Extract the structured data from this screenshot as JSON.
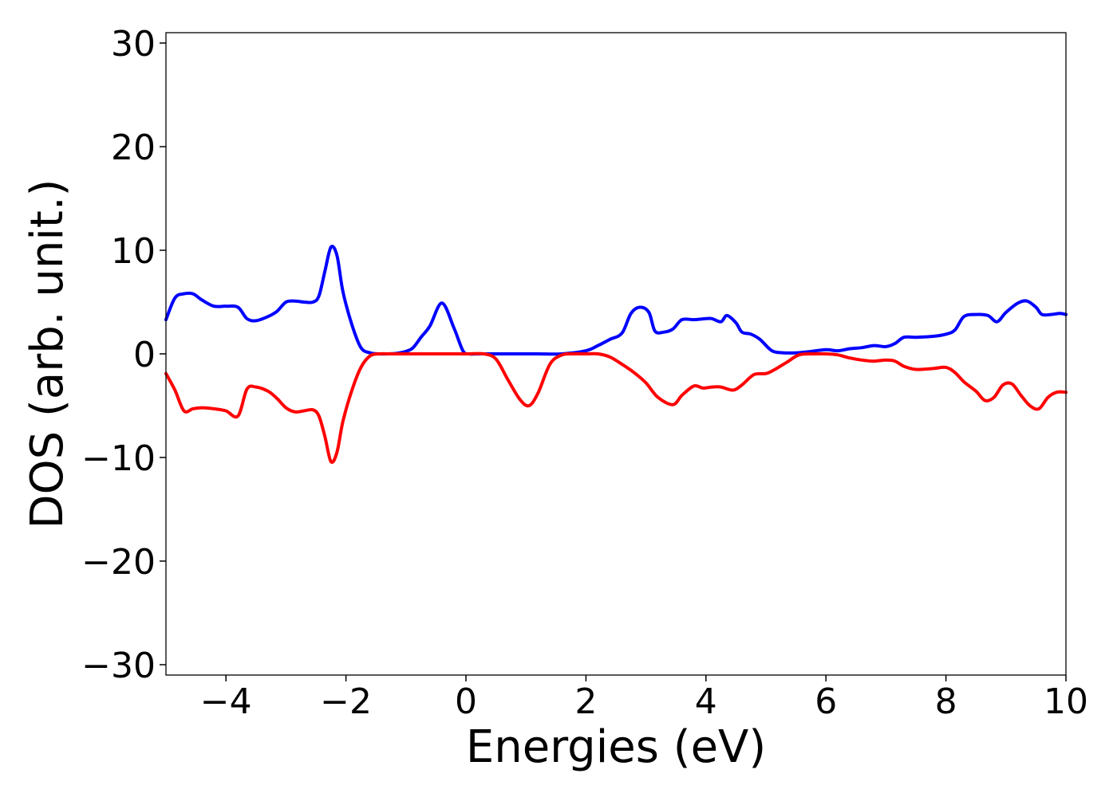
{
  "chart_data": {
    "type": "line",
    "title": "",
    "xlabel": "Energies (eV)",
    "ylabel": "DOS (arb. unit.)",
    "xlim": [
      -5,
      10
    ],
    "ylim": [
      -31,
      31
    ],
    "grid": false,
    "legend": "none",
    "xticks": [
      {
        "value": -4,
        "label": "−4"
      },
      {
        "value": -2,
        "label": "−2"
      },
      {
        "value": 0,
        "label": "0"
      },
      {
        "value": 2,
        "label": "2"
      },
      {
        "value": 4,
        "label": "4"
      },
      {
        "value": 6,
        "label": "6"
      },
      {
        "value": 8,
        "label": "8"
      },
      {
        "value": 10,
        "label": "10"
      }
    ],
    "yticks": [
      {
        "value": -30,
        "label": "−30"
      },
      {
        "value": -20,
        "label": "−20"
      },
      {
        "value": -10,
        "label": "−10"
      },
      {
        "value": 0,
        "label": "0"
      },
      {
        "value": 10,
        "label": "10"
      },
      {
        "value": 20,
        "label": "20"
      },
      {
        "value": 30,
        "label": "30"
      }
    ],
    "series": [
      {
        "color": "#0000ff",
        "x": [
          -5.0,
          -4.85,
          -4.7,
          -4.55,
          -4.4,
          -4.2,
          -4.0,
          -3.8,
          -3.65,
          -3.5,
          -3.3,
          -3.15,
          -3.0,
          -2.85,
          -2.7,
          -2.55,
          -2.45,
          -2.35,
          -2.25,
          -2.15,
          -2.05,
          -1.9,
          -1.75,
          -1.6,
          -1.45,
          -1.3,
          -1.1,
          -0.9,
          -0.75,
          -0.6,
          -0.4,
          -0.2,
          -0.05,
          0.05,
          0.2,
          0.35,
          0.5,
          0.8,
          1.2,
          1.6,
          2.0,
          2.2,
          2.4,
          2.6,
          2.75,
          2.9,
          3.05,
          3.15,
          3.3,
          3.45,
          3.6,
          3.8,
          4.0,
          4.1,
          4.25,
          4.35,
          4.5,
          4.6,
          4.75,
          4.9,
          5.1,
          5.3,
          5.5,
          5.7,
          6.0,
          6.2,
          6.4,
          6.6,
          6.8,
          7.0,
          7.15,
          7.3,
          7.5,
          7.8,
          8.0,
          8.15,
          8.3,
          8.5,
          8.7,
          8.85,
          9.0,
          9.2,
          9.35,
          9.5,
          9.6,
          9.75,
          9.9,
          10.0
        ],
        "y": [
          3.3,
          5.4,
          5.8,
          5.8,
          5.2,
          4.6,
          4.6,
          4.5,
          3.4,
          3.2,
          3.6,
          4.1,
          5.0,
          5.1,
          5.0,
          5.0,
          5.6,
          8.0,
          10.3,
          9.5,
          6.0,
          2.8,
          0.6,
          0.1,
          0.0,
          0.0,
          0.1,
          0.5,
          1.6,
          2.7,
          4.9,
          2.5,
          0.3,
          0.0,
          0.0,
          0.0,
          0.0,
          0.0,
          0.0,
          0.0,
          0.3,
          0.8,
          1.4,
          2.0,
          3.9,
          4.5,
          4.0,
          2.2,
          2.1,
          2.4,
          3.3,
          3.3,
          3.4,
          3.4,
          3.1,
          3.7,
          3.0,
          2.1,
          1.9,
          1.4,
          0.3,
          0.1,
          0.1,
          0.2,
          0.4,
          0.3,
          0.5,
          0.6,
          0.8,
          0.7,
          1.0,
          1.6,
          1.6,
          1.7,
          1.9,
          2.3,
          3.6,
          3.8,
          3.7,
          3.1,
          4.0,
          4.9,
          5.1,
          4.5,
          3.8,
          3.8,
          3.9,
          3.8
        ]
      },
      {
        "color": "#ff0000",
        "x": [
          -5.0,
          -4.85,
          -4.7,
          -4.55,
          -4.4,
          -4.2,
          -4.0,
          -3.8,
          -3.65,
          -3.5,
          -3.3,
          -3.15,
          -3.0,
          -2.85,
          -2.7,
          -2.55,
          -2.45,
          -2.35,
          -2.25,
          -2.15,
          -2.05,
          -1.9,
          -1.75,
          -1.6,
          -1.45,
          -1.3,
          -1.1,
          -0.9,
          -0.5,
          0.0,
          0.3,
          0.5,
          0.7,
          0.9,
          1.05,
          1.2,
          1.4,
          1.6,
          1.8,
          2.0,
          2.2,
          2.4,
          2.6,
          2.8,
          3.0,
          3.2,
          3.45,
          3.6,
          3.8,
          3.95,
          4.1,
          4.25,
          4.45,
          4.6,
          4.8,
          5.0,
          5.15,
          5.35,
          5.55,
          5.8,
          6.0,
          6.2,
          6.4,
          6.6,
          6.8,
          7.0,
          7.15,
          7.3,
          7.5,
          7.8,
          8.0,
          8.15,
          8.3,
          8.5,
          8.65,
          8.8,
          8.95,
          9.1,
          9.25,
          9.4,
          9.55,
          9.7,
          9.85,
          10.0
        ],
        "y": [
          -1.9,
          -3.5,
          -5.5,
          -5.3,
          -5.2,
          -5.3,
          -5.5,
          -6.0,
          -3.4,
          -3.2,
          -3.6,
          -4.3,
          -5.2,
          -5.6,
          -5.5,
          -5.4,
          -6.0,
          -8.0,
          -10.4,
          -9.5,
          -6.5,
          -3.5,
          -1.3,
          -0.2,
          0.0,
          0.0,
          0.0,
          0.0,
          0.0,
          0.0,
          0.0,
          -0.5,
          -2.5,
          -4.4,
          -5.0,
          -3.8,
          -1.0,
          -0.1,
          0.0,
          0.0,
          0.0,
          -0.3,
          -1.0,
          -1.8,
          -2.8,
          -4.2,
          -4.9,
          -4.0,
          -3.1,
          -3.3,
          -3.2,
          -3.2,
          -3.5,
          -3.0,
          -2.0,
          -1.9,
          -1.5,
          -0.8,
          -0.1,
          0.0,
          0.0,
          -0.1,
          -0.4,
          -0.6,
          -0.7,
          -0.6,
          -0.7,
          -1.2,
          -1.5,
          -1.4,
          -1.3,
          -1.8,
          -2.7,
          -3.6,
          -4.5,
          -4.2,
          -3.0,
          -2.9,
          -4.0,
          -5.0,
          -5.3,
          -4.2,
          -3.7,
          -3.7
        ]
      }
    ]
  }
}
